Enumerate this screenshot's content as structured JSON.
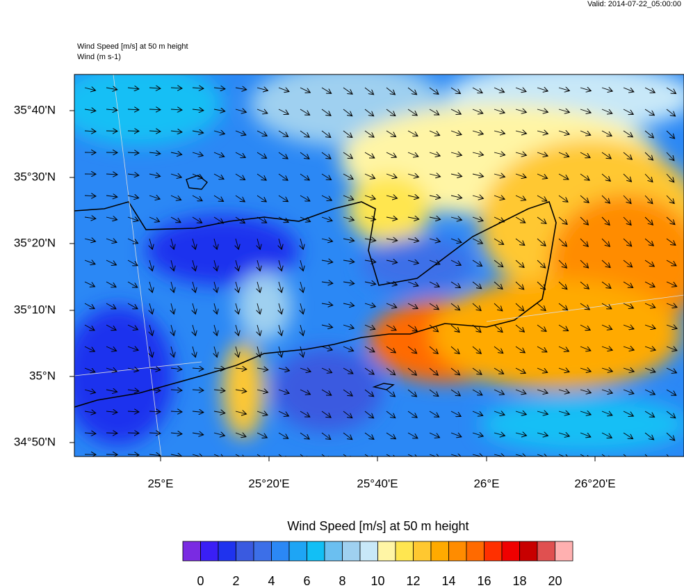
{
  "valid": "Valid: 2014-07-22_05:00:00",
  "plot": {
    "title": "Wind Speed [m/s] at 50 m height",
    "subtitle": "Wind   (m s-1)",
    "lat_labels": [
      "35°40'N",
      "35°30'N",
      "35°20'N",
      "35°10'N",
      "35°N",
      "34°50'N"
    ],
    "lon_labels": [
      "25°E",
      "25°20'E",
      "25°40'E",
      "26°E",
      "26°20'E"
    ]
  },
  "colorbar": {
    "title": "Wind Speed [m/s] at 50 m height",
    "colors": [
      "#7a2be2",
      "#3a1ff5",
      "#1f33ee",
      "#3a5ae0",
      "#3c6fe8",
      "#2b88f5",
      "#1ea5f5",
      "#12bff5",
      "#6bbff0",
      "#9fd0f0",
      "#c8e8f8",
      "#fff5a5",
      "#ffe650",
      "#ffc830",
      "#ffaa00",
      "#ff8c00",
      "#ff6a00",
      "#ff3000",
      "#f00000",
      "#c80000",
      "#e05050",
      "#ffb0b0"
    ],
    "labels": [
      0,
      2,
      4,
      6,
      8,
      10,
      12,
      14,
      16,
      18,
      20
    ]
  }
}
